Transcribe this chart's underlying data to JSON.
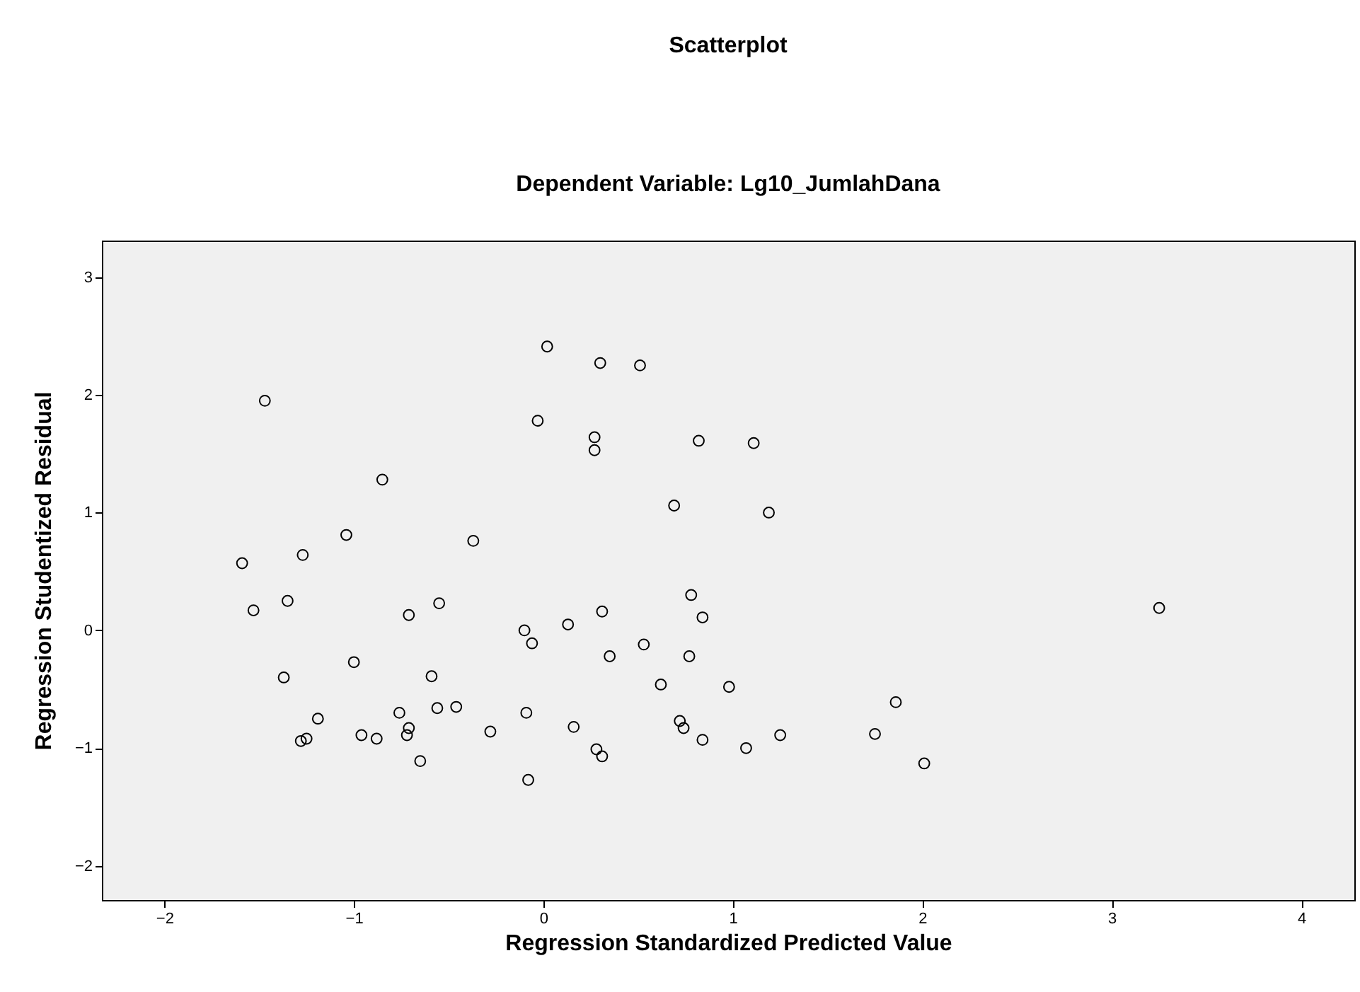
{
  "chart_data": {
    "type": "scatter",
    "title": "Scatterplot",
    "subtitle": "Dependent Variable: Lg10_JumlahDana",
    "xlabel": "Regression Standardized Predicted Value",
    "ylabel": "Regression Studentized Residual",
    "xlim": [
      -2.33,
      4.28
    ],
    "ylim": [
      -2.29,
      3.31
    ],
    "xticks": [
      -2,
      -1,
      0,
      1,
      2,
      3,
      4
    ],
    "yticks": [
      -2,
      -1,
      0,
      1,
      2,
      3
    ],
    "marker": "circle",
    "color": "#000000",
    "x": [
      0.02,
      0.3,
      0.51,
      -1.47,
      -0.03,
      0.27,
      0.27,
      0.82,
      1.11,
      -0.85,
      0.69,
      1.19,
      -1.04,
      -1.27,
      -0.37,
      -1.59,
      -1.53,
      -1.35,
      -0.71,
      -0.55,
      0.78,
      0.84,
      0.31,
      -0.1,
      -0.06,
      0.13,
      3.25,
      -1.0,
      0.35,
      0.53,
      0.77,
      0.62,
      0.98,
      -1.37,
      -0.59,
      -1.19,
      1.86,
      -0.76,
      -0.56,
      -0.46,
      -0.71,
      -0.72,
      -0.96,
      -0.88,
      -1.28,
      -1.25,
      -0.28,
      -0.09,
      0.16,
      0.72,
      0.74,
      0.84,
      1.07,
      1.25,
      1.75,
      0.28,
      0.31,
      -0.65,
      2.01,
      -0.08
    ],
    "values": [
      2.41,
      2.27,
      2.25,
      1.95,
      1.78,
      1.64,
      1.53,
      1.61,
      1.59,
      1.28,
      1.06,
      1.0,
      0.81,
      0.64,
      0.76,
      0.57,
      0.17,
      0.25,
      0.13,
      0.23,
      0.3,
      0.11,
      0.16,
      0.0,
      -0.11,
      0.05,
      0.19,
      -0.27,
      -0.22,
      -0.12,
      -0.22,
      -0.46,
      -0.48,
      -0.4,
      -0.39,
      -0.75,
      -0.61,
      -0.7,
      -0.66,
      -0.65,
      -0.83,
      -0.89,
      -0.89,
      -0.92,
      -0.94,
      -0.92,
      -0.86,
      -0.7,
      -0.82,
      -0.77,
      -0.83,
      -0.93,
      -1.0,
      -0.89,
      -0.88,
      -1.01,
      -1.07,
      -1.11,
      -1.13,
      -1.27
    ]
  }
}
